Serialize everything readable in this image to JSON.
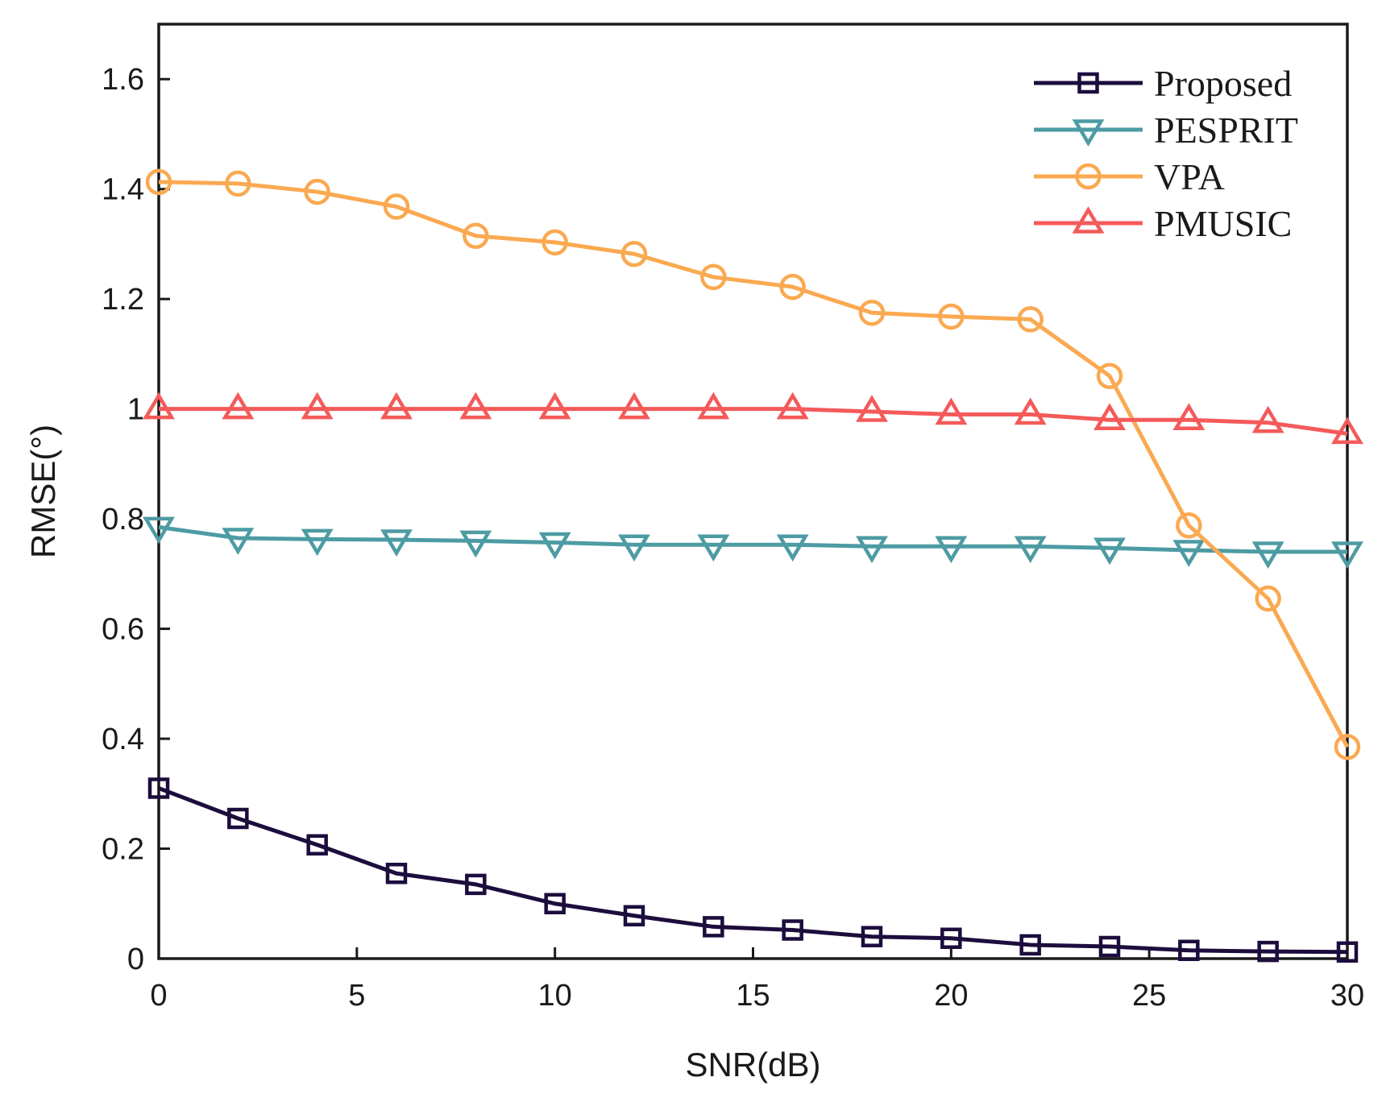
{
  "chart_data": {
    "type": "line",
    "title": "",
    "xlabel": "SNR(dB)",
    "ylabel": "RMSE(°)",
    "xlim": [
      0,
      30
    ],
    "ylim": [
      0,
      1.7
    ],
    "xticks": [
      0,
      5,
      10,
      15,
      20,
      25,
      30
    ],
    "xtick_labels": [
      "0",
      "5",
      "10",
      "15",
      "20",
      "25",
      "30"
    ],
    "yticks": [
      0,
      0.2,
      0.4,
      0.6,
      0.8,
      1.0,
      1.2,
      1.4,
      1.6
    ],
    "ytick_labels": [
      "0",
      "0.2",
      "0.4",
      "0.6",
      "0.8",
      "1",
      "1.2",
      "1.4",
      "1.6"
    ],
    "grid": false,
    "legend_position": "top-right",
    "x": [
      0,
      2,
      4,
      6,
      8,
      10,
      12,
      14,
      16,
      18,
      20,
      22,
      24,
      26,
      28,
      30
    ],
    "series": [
      {
        "name": "Proposed",
        "color": "#1c0d3d",
        "marker": "square",
        "values": [
          0.31,
          0.255,
          0.207,
          0.155,
          0.135,
          0.1,
          0.078,
          0.058,
          0.052,
          0.04,
          0.037,
          0.025,
          0.022,
          0.015,
          0.013,
          0.012
        ]
      },
      {
        "name": "PESPRIT",
        "color": "#4d9ba3",
        "marker": "triangle-down",
        "values": [
          0.785,
          0.765,
          0.763,
          0.762,
          0.76,
          0.757,
          0.753,
          0.753,
          0.753,
          0.75,
          0.75,
          0.75,
          0.747,
          0.743,
          0.74,
          0.74
        ]
      },
      {
        "name": "VPA",
        "color": "#faa951",
        "marker": "circle",
        "values": [
          1.413,
          1.41,
          1.395,
          1.368,
          1.315,
          1.303,
          1.282,
          1.24,
          1.222,
          1.175,
          1.168,
          1.163,
          1.06,
          0.788,
          0.655,
          0.385
        ]
      },
      {
        "name": "PMUSIC",
        "color": "#f45a5a",
        "marker": "triangle-up",
        "values": [
          1.0,
          1.0,
          1.0,
          1.0,
          1.0,
          1.0,
          1.0,
          1.0,
          1.0,
          0.995,
          0.99,
          0.99,
          0.98,
          0.98,
          0.975,
          0.955
        ]
      }
    ]
  }
}
